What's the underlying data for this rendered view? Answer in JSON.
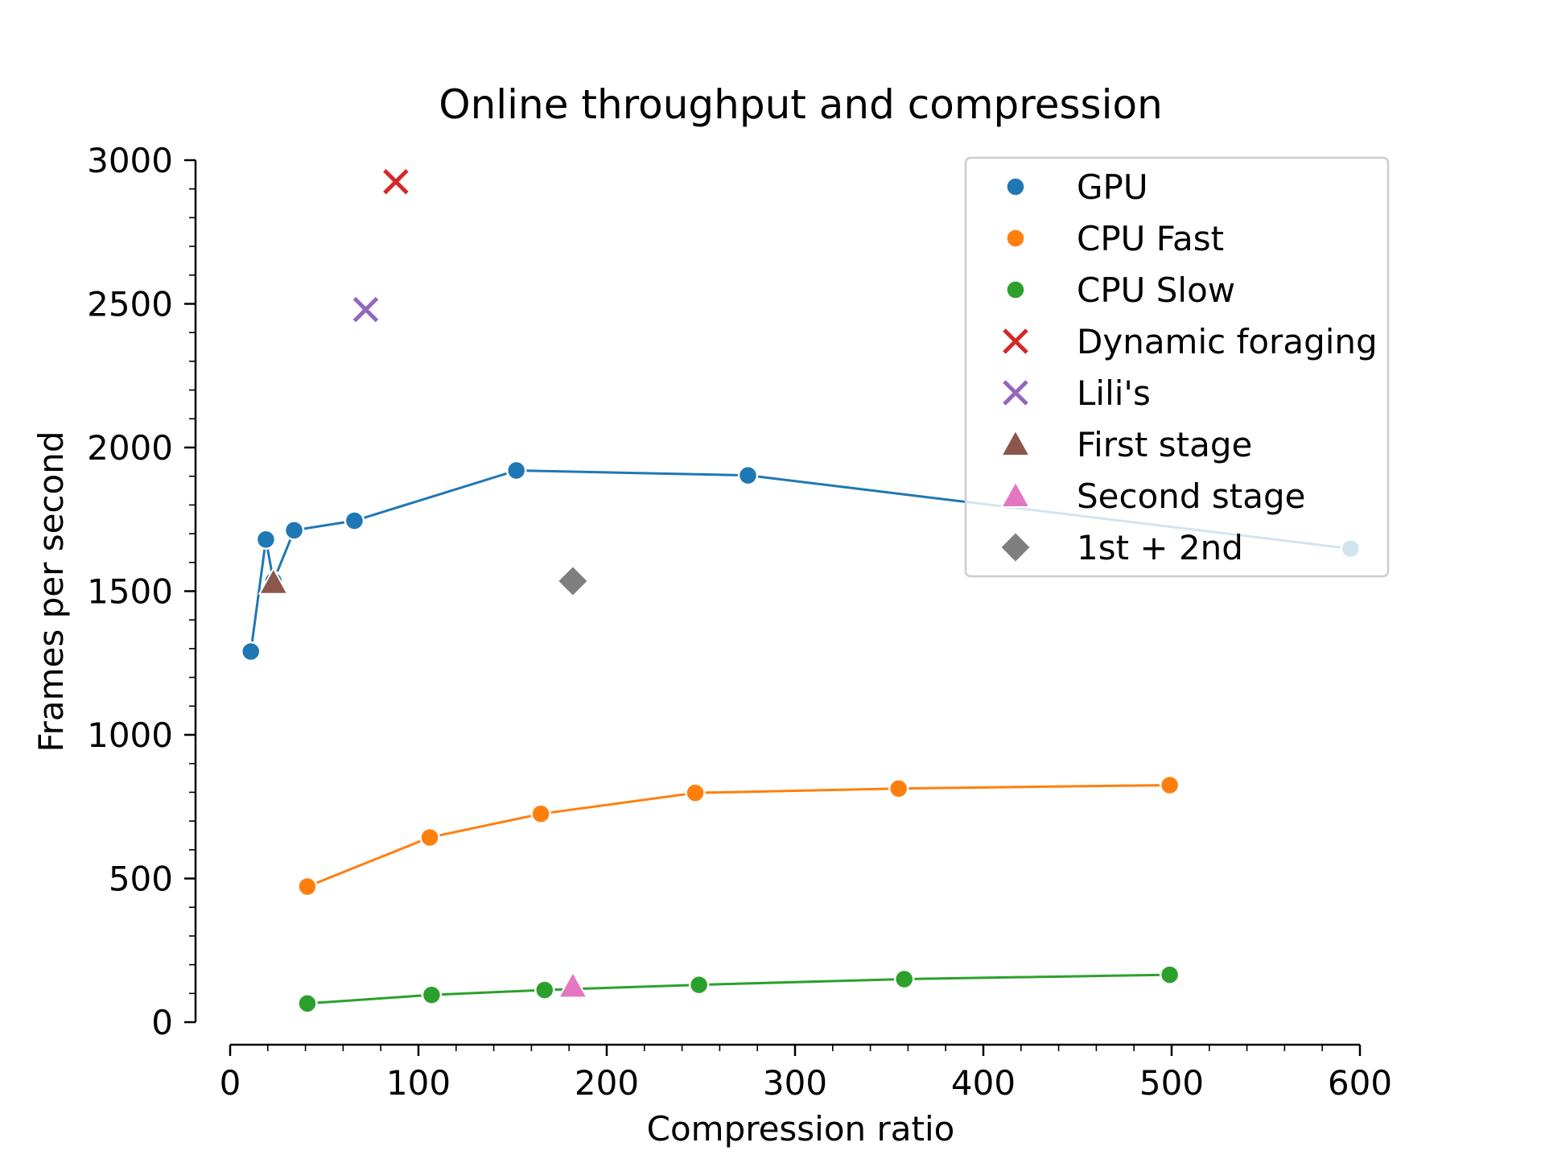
{
  "chart_data": {
    "type": "scatter",
    "title": "Online throughput and compression",
    "xlabel": "Compression ratio",
    "ylabel": "Frames per second",
    "xlim": [
      0,
      600
    ],
    "ylim": [
      0,
      3000
    ],
    "xticks": [
      0,
      100,
      200,
      300,
      400,
      500,
      600
    ],
    "yticks": [
      0,
      500,
      1000,
      1500,
      2000,
      2500,
      3000
    ],
    "grid": false,
    "legend_position": "top-right",
    "series": [
      {
        "name": "GPU",
        "color": "#1f77b4",
        "marker": "circle",
        "line": true,
        "x": [
          11,
          19,
          23,
          34,
          66,
          152,
          275,
          595
        ],
        "y": [
          1290,
          1680,
          1535,
          1712,
          1745,
          1920,
          1903,
          1648
        ]
      },
      {
        "name": "CPU Fast",
        "color": "#ff7f0e",
        "marker": "circle",
        "line": true,
        "x": [
          41,
          106,
          165,
          247,
          355,
          499
        ],
        "y": [
          472,
          643,
          725,
          798,
          813,
          825
        ]
      },
      {
        "name": "CPU Slow",
        "color": "#2ca02c",
        "marker": "circle",
        "line": true,
        "x": [
          41,
          107,
          167,
          249,
          358,
          499
        ],
        "y": [
          65,
          95,
          112,
          130,
          150,
          165
        ]
      },
      {
        "name": "Dynamic foraging",
        "color": "#d62728",
        "marker": "x",
        "line": false,
        "x": [
          88
        ],
        "y": [
          2925
        ]
      },
      {
        "name": "Lili's",
        "color": "#9467bd",
        "marker": "x",
        "line": false,
        "x": [
          72
        ],
        "y": [
          2480
        ]
      },
      {
        "name": "First stage",
        "color": "#8c564b",
        "marker": "triangle",
        "line": false,
        "x": [
          23
        ],
        "y": [
          1530
        ]
      },
      {
        "name": "Second stage",
        "color": "#e377c2",
        "marker": "triangle",
        "line": false,
        "x": [
          182
        ],
        "y": [
          125
        ]
      },
      {
        "name": "1st + 2nd",
        "color": "#7f7f7f",
        "marker": "diamond",
        "line": false,
        "x": [
          182
        ],
        "y": [
          1535
        ]
      }
    ]
  }
}
